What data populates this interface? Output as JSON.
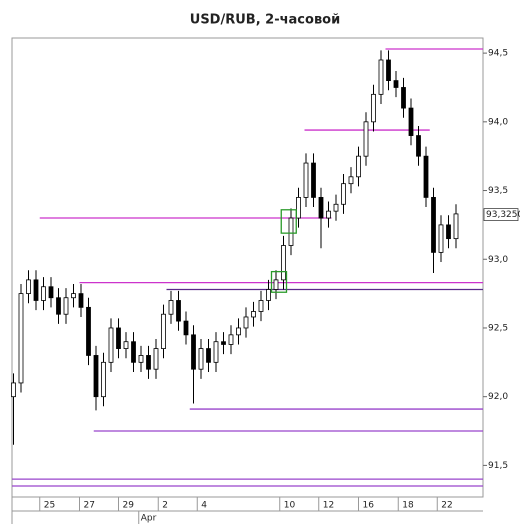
{
  "chart_data": {
    "type": "candlestick",
    "title": "USD/RUB, 2-часовой",
    "xlim": [
      -0.2,
      62.6
    ],
    "ylim": [
      91.27,
      94.61
    ],
    "yticks": [
      {
        "value": 94.5,
        "label": "94,5"
      },
      {
        "value": 94.0,
        "label": "94,0"
      },
      {
        "value": 93.5,
        "label": "93,5"
      },
      {
        "value": 93.0,
        "label": "93,0"
      },
      {
        "value": 92.5,
        "label": "92,5"
      },
      {
        "value": 92.0,
        "label": "92,0"
      },
      {
        "value": 91.5,
        "label": "91,5"
      }
    ],
    "xticks": [
      {
        "value": 3.5,
        "label": "25"
      },
      {
        "value": 8.8,
        "label": "27"
      },
      {
        "value": 14.0,
        "label": "29"
      },
      {
        "value": 19.3,
        "label": "2"
      },
      {
        "value": 24.5,
        "label": "4"
      },
      {
        "value": 35.5,
        "label": "10"
      },
      {
        "value": 40.7,
        "label": "12"
      },
      {
        "value": 46.0,
        "label": "16"
      },
      {
        "value": 51.3,
        "label": "18"
      },
      {
        "value": 56.5,
        "label": "22"
      }
    ],
    "month_ticks": [
      {
        "value": 16.7,
        "label": "Apr"
      }
    ],
    "last_price": {
      "value": 93.325,
      "label": "93,3250"
    },
    "open": [
      92.0,
      92.1,
      92.75,
      92.85,
      92.7,
      92.8,
      92.72,
      92.6,
      92.72,
      92.75,
      92.65,
      92.3,
      92.0,
      92.25,
      92.5,
      92.35,
      92.4,
      92.25,
      92.3,
      92.2,
      92.35,
      92.6,
      92.7,
      92.55,
      92.45,
      92.2,
      92.35,
      92.25,
      92.4,
      92.38,
      92.45,
      92.5,
      92.58,
      92.62,
      92.7,
      92.78,
      92.85,
      93.1,
      93.3,
      93.45,
      93.7,
      93.45,
      93.3,
      93.35,
      93.4,
      93.55,
      93.6,
      93.75,
      94.0,
      94.2,
      94.45,
      94.3,
      94.25,
      94.1,
      93.9,
      93.75,
      93.45,
      93.05,
      93.25,
      93.15
    ],
    "high": [
      92.17,
      92.82,
      92.92,
      92.92,
      92.87,
      92.87,
      92.79,
      92.79,
      92.82,
      92.82,
      92.72,
      92.37,
      92.32,
      92.57,
      92.57,
      92.47,
      92.47,
      92.37,
      92.37,
      92.42,
      92.67,
      92.77,
      92.77,
      92.62,
      92.52,
      92.42,
      92.42,
      92.47,
      92.47,
      92.52,
      92.57,
      92.65,
      92.69,
      92.77,
      92.85,
      92.92,
      93.17,
      93.37,
      93.52,
      93.77,
      93.77,
      93.52,
      93.42,
      93.47,
      93.62,
      93.67,
      93.82,
      94.07,
      94.27,
      94.52,
      94.52,
      94.37,
      94.32,
      94.17,
      93.97,
      93.82,
      93.52,
      93.32,
      93.32,
      93.4
    ],
    "low": [
      91.65,
      92.03,
      92.68,
      92.63,
      92.63,
      92.65,
      92.53,
      92.53,
      92.65,
      92.58,
      92.23,
      91.9,
      91.93,
      92.18,
      92.28,
      92.28,
      92.18,
      92.18,
      92.13,
      92.13,
      92.28,
      92.53,
      92.48,
      92.38,
      91.95,
      92.13,
      92.18,
      92.18,
      92.31,
      92.31,
      92.38,
      92.43,
      92.51,
      92.55,
      92.63,
      92.71,
      92.78,
      93.03,
      93.23,
      93.38,
      93.38,
      93.08,
      93.23,
      93.28,
      93.33,
      93.48,
      93.53,
      93.68,
      93.93,
      94.13,
      94.23,
      94.18,
      94.03,
      93.83,
      93.68,
      93.38,
      92.9,
      92.98,
      93.08,
      93.08
    ],
    "close": [
      92.1,
      92.75,
      92.85,
      92.7,
      92.8,
      92.72,
      92.6,
      92.72,
      92.75,
      92.65,
      92.3,
      92.0,
      92.25,
      92.5,
      92.35,
      92.4,
      92.25,
      92.3,
      92.2,
      92.35,
      92.6,
      92.7,
      92.55,
      92.45,
      92.2,
      92.35,
      92.25,
      92.4,
      92.38,
      92.45,
      92.5,
      92.58,
      92.62,
      92.7,
      92.78,
      92.85,
      93.1,
      93.3,
      93.45,
      93.7,
      93.45,
      93.3,
      93.35,
      93.4,
      93.55,
      93.6,
      93.75,
      94.0,
      94.2,
      94.45,
      94.3,
      94.25,
      94.1,
      93.9,
      93.75,
      93.45,
      93.05,
      93.25,
      93.15,
      93.33
    ],
    "levels": [
      {
        "value": 94.53,
        "start": 49.6,
        "color": "#cc33cc"
      },
      {
        "value": 93.94,
        "start": 38.8,
        "end": 55.5,
        "color": "#cc33cc"
      },
      {
        "value": 93.3,
        "start": 3.5,
        "end": 42.4,
        "color": "#cc33cc"
      },
      {
        "value": 92.83,
        "start": 8.8,
        "color": "#cc33cc"
      },
      {
        "value": 92.78,
        "start": 20.4,
        "color": "#5a2a8a"
      },
      {
        "value": 91.91,
        "start": 23.5,
        "color": "#9944cc"
      },
      {
        "value": 91.75,
        "start": 10.7,
        "color": "#9944cc"
      },
      {
        "value": 91.4,
        "start": -0.2,
        "color": "#9944cc"
      },
      {
        "value": 91.35,
        "start": -0.2,
        "color": "#9944cc"
      }
    ],
    "highlights": [
      {
        "x": [
          35.7,
          37.7
        ],
        "y": [
          93.19,
          93.36
        ],
        "color": "#2a9a2a"
      },
      {
        "x": [
          34.4,
          36.4
        ],
        "y": [
          92.76,
          92.91
        ],
        "color": "#2a9a2a"
      }
    ]
  }
}
